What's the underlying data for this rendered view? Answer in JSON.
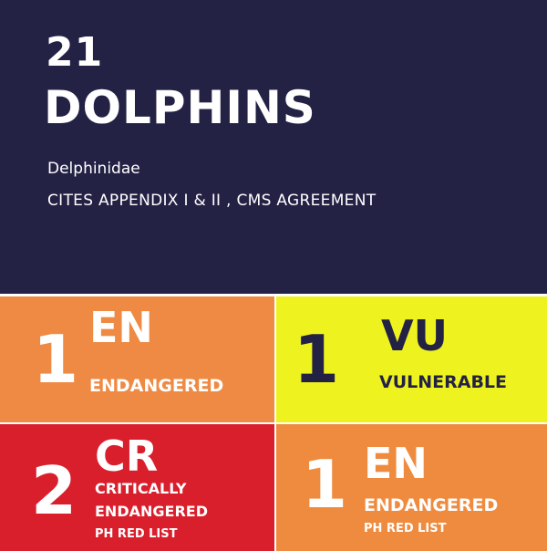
{
  "header": {
    "count": "21",
    "title": "DOLPHINS",
    "family": "Delphinidae",
    "listing": "CITES APPENDIX I & II , CMS AGREEMENT"
  },
  "tiles": [
    {
      "number": "1",
      "code": "EN",
      "label": "ENDANGERED",
      "sub": "",
      "bg": "#ee8a43",
      "fg": "#ffffff"
    },
    {
      "number": "1",
      "code": "VU",
      "label": "VULNERABLE",
      "sub": "",
      "bg": "#eef21e",
      "fg": "#232245"
    },
    {
      "number": "2",
      "code": "CR",
      "label_line1": "CRITICALLY",
      "label_line2": "ENDANGERED",
      "sub": "PH RED LIST",
      "bg": "#d91f2c",
      "fg": "#ffffff"
    },
    {
      "number": "1",
      "code": "EN",
      "label": "ENDANGERED",
      "sub": "PH RED LIST",
      "bg": "#ef8b3f",
      "fg": "#ffffff"
    }
  ],
  "colors": {
    "header_bg": "#232245"
  }
}
